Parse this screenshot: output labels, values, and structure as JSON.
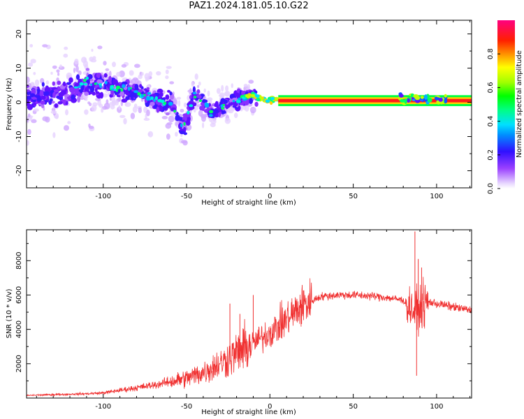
{
  "title": "PAZ1.2024.181.05.10.G22",
  "colors": {
    "snr_line": "#f03030",
    "carrier": "#ff1a1a"
  },
  "chart_data": [
    {
      "type": "heatmap",
      "xlabel": "Height of straight line (km)",
      "ylabel": "Frequency (Hz)",
      "xlim": [
        -146,
        121
      ],
      "ylim": [
        -25,
        24
      ],
      "xticks": [
        -100,
        -50,
        0,
        50,
        100
      ],
      "yticks": [
        -20,
        -10,
        0,
        10,
        20
      ],
      "colorbar": {
        "label": "Normalized spectral amplitude",
        "range": [
          0,
          1
        ],
        "ticks": [
          "0.0",
          "0.2",
          "0.4",
          "0.6",
          "0.8"
        ]
      },
      "ridge": [
        {
          "x": -140,
          "y": 1.5
        },
        {
          "x": -120,
          "y": 3
        },
        {
          "x": -110,
          "y": 6
        },
        {
          "x": -100,
          "y": 5
        },
        {
          "x": -90,
          "y": 4
        },
        {
          "x": -80,
          "y": 3
        },
        {
          "x": -70,
          "y": 1
        },
        {
          "x": -60,
          "y": 0
        },
        {
          "x": -52,
          "y": -8
        },
        {
          "x": -45,
          "y": 2
        },
        {
          "x": -40,
          "y": 0
        },
        {
          "x": -35,
          "y": -3
        },
        {
          "x": -25,
          "y": 0
        },
        {
          "x": -15,
          "y": 1.5
        },
        {
          "x": -10,
          "y": 2
        },
        {
          "x": -5,
          "y": 1
        },
        {
          "x": 0,
          "y": 0.5
        },
        {
          "x": 10,
          "y": 0.5
        },
        {
          "x": 50,
          "y": 0.5
        },
        {
          "x": 85,
          "y": 1.5
        },
        {
          "x": 95,
          "y": 1
        },
        {
          "x": 105,
          "y": 0.5
        },
        {
          "x": 121,
          "y": 0.5
        }
      ],
      "carrier": {
        "x_start": 5,
        "x_end": 121,
        "y": 0.5
      }
    },
    {
      "type": "line",
      "xlabel": "Height of straight line (km)",
      "ylabel": "SNR (10 * v/v)",
      "xlim": [
        -146,
        121
      ],
      "ylim": [
        0,
        9800
      ],
      "xticks": [
        -100,
        -50,
        0,
        50,
        100
      ],
      "yticks": [
        2000,
        4000,
        6000,
        8000
      ],
      "series": [
        {
          "values_envelope": [
            {
              "x": -146,
              "y": 150
            },
            {
              "x": -130,
              "y": 200
            },
            {
              "x": -110,
              "y": 250
            },
            {
              "x": -100,
              "y": 300
            },
            {
              "x": -90,
              "y": 450
            },
            {
              "x": -80,
              "y": 600
            },
            {
              "x": -70,
              "y": 750
            },
            {
              "x": -60,
              "y": 950
            },
            {
              "x": -50,
              "y": 1150
            },
            {
              "x": -40,
              "y": 1500
            },
            {
              "x": -30,
              "y": 2000
            },
            {
              "x": -20,
              "y": 2600
            },
            {
              "x": -10,
              "y": 3200
            },
            {
              "x": 0,
              "y": 3800
            },
            {
              "x": 10,
              "y": 4600
            },
            {
              "x": 20,
              "y": 5400
            },
            {
              "x": 30,
              "y": 5900
            },
            {
              "x": 40,
              "y": 6000
            },
            {
              "x": 50,
              "y": 6000
            },
            {
              "x": 60,
              "y": 5950
            },
            {
              "x": 70,
              "y": 5850
            },
            {
              "x": 80,
              "y": 5700
            },
            {
              "x": 87,
              "y": 5000
            },
            {
              "x": 95,
              "y": 5600
            },
            {
              "x": 105,
              "y": 5400
            },
            {
              "x": 121,
              "y": 5100
            }
          ],
          "peaks": [
            {
              "x": -24,
              "y": 5500
            },
            {
              "x": -18,
              "y": 4900
            },
            {
              "x": -10,
              "y": 6000
            },
            {
              "x": 87,
              "y": 9700
            },
            {
              "x": 88,
              "y": 1300
            },
            {
              "x": 89,
              "y": 8100
            },
            {
              "x": 91,
              "y": 7600
            }
          ]
        }
      ]
    }
  ]
}
